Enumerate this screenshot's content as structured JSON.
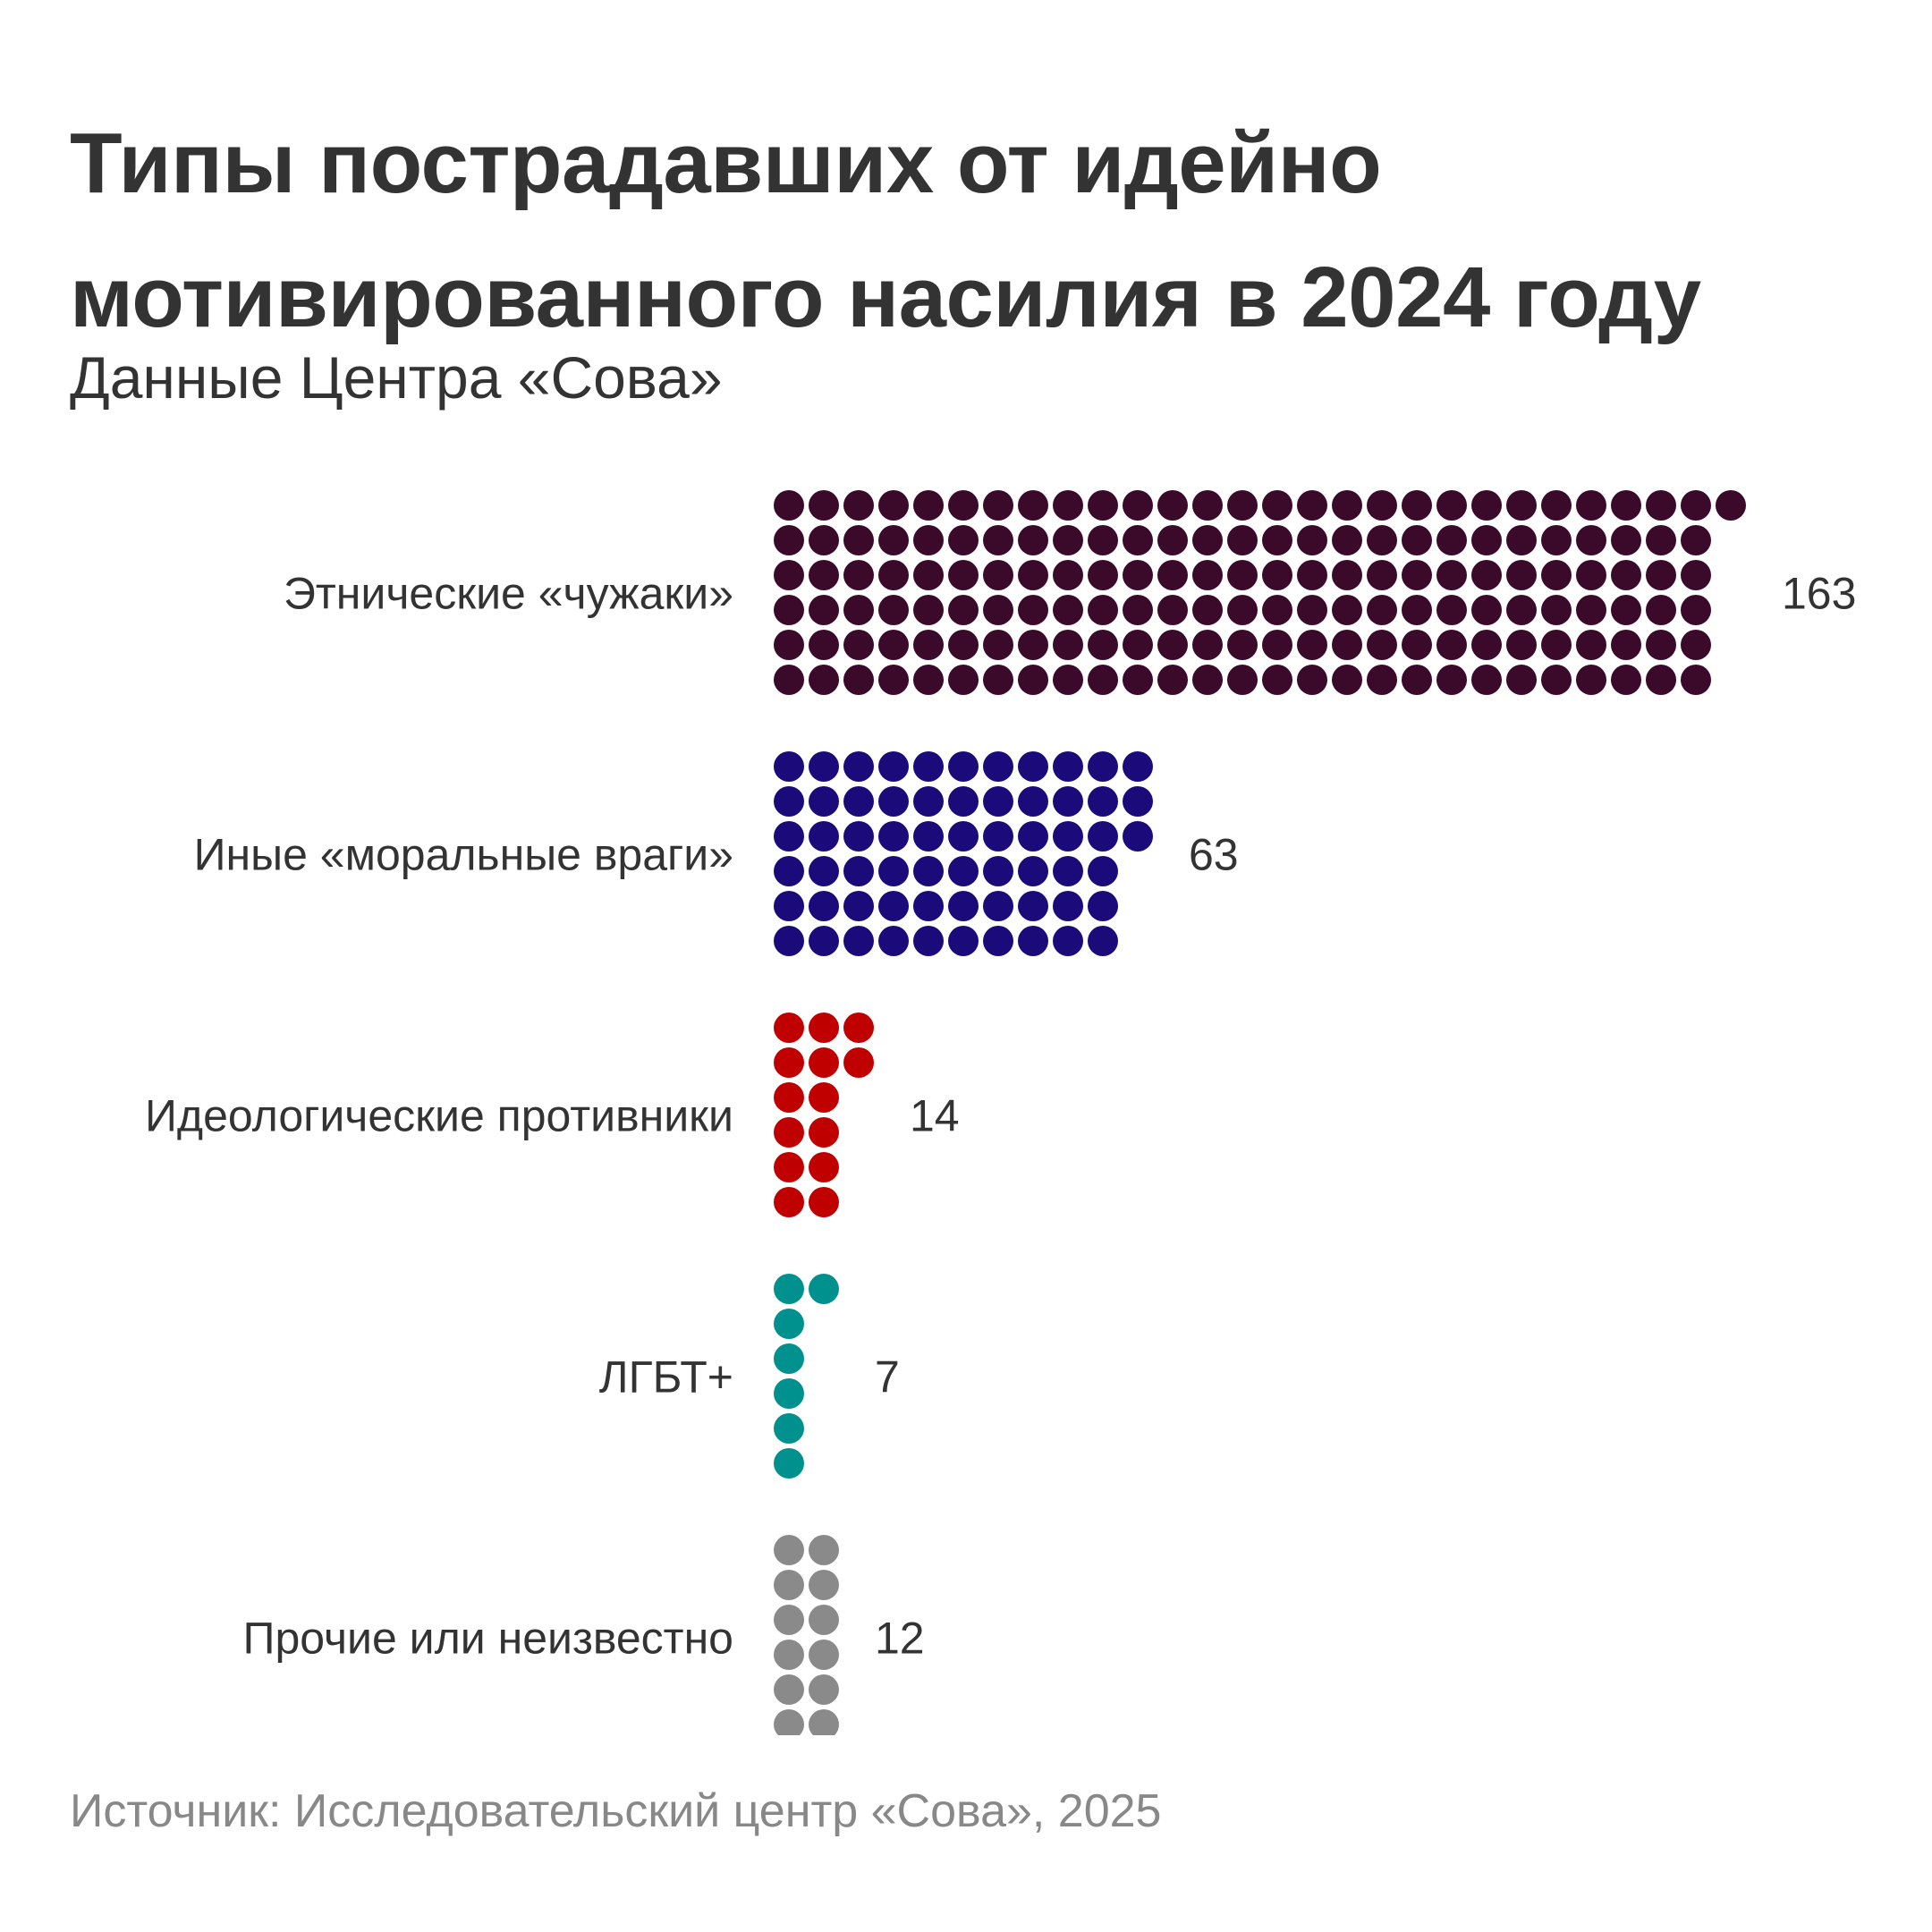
{
  "chart_data": {
    "type": "waffle",
    "title": "Типы пострадавших от идейно мотивированного насилия в 2024 году",
    "subtitle": "Данные Центра «Сова»",
    "source": "Источник: Исследовательский центр «Сова», 2025",
    "unit_per_dot": 1,
    "rows_per_group": 6,
    "legend": "none",
    "grid": false,
    "categories": [
      "Этнические «чужаки»",
      "Иные «моральные враги»",
      "Идеологические противники",
      "ЛГБТ+",
      "Прочие или неизвестно"
    ],
    "values": [
      163,
      63,
      14,
      7,
      12
    ],
    "value_labels": [
      "163",
      "63",
      "14",
      "7",
      "12"
    ],
    "colors": [
      "#3b0a2a",
      "#1a0a7a",
      "#c00000",
      "#00918f",
      "#8a8a8a"
    ]
  }
}
